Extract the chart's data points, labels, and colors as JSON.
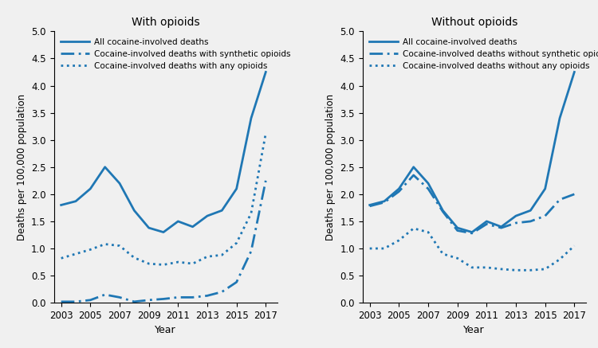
{
  "years": [
    2003,
    2004,
    2005,
    2006,
    2007,
    2008,
    2009,
    2010,
    2011,
    2012,
    2013,
    2014,
    2015,
    2016,
    2017
  ],
  "left_title": "With opioids",
  "left_line1_label": "All cocaine-involved deaths",
  "left_line2_label": "Cocaine-involved deaths with synthetic opioids",
  "left_line3_label": "Cocaine-involved deaths with any opioids",
  "left_line1": [
    1.8,
    1.87,
    2.1,
    2.5,
    2.2,
    1.7,
    1.38,
    1.3,
    1.5,
    1.4,
    1.6,
    1.7,
    2.1,
    3.4,
    4.25
  ],
  "left_line2": [
    0.02,
    0.02,
    0.05,
    0.15,
    0.1,
    0.02,
    0.05,
    0.07,
    0.1,
    0.1,
    0.13,
    0.2,
    0.38,
    0.95,
    2.25
  ],
  "left_line3": [
    0.82,
    0.9,
    0.98,
    1.08,
    1.05,
    0.83,
    0.72,
    0.7,
    0.75,
    0.72,
    0.85,
    0.88,
    1.1,
    1.65,
    3.12
  ],
  "right_title": "Without opioids",
  "right_line1_label": "All cocaine-involved deaths",
  "right_line2_label": "Cocaine-involved deaths without synthetic opioids",
  "right_line3_label": "Cocaine-involved deaths without any opioids",
  "right_line1": [
    1.8,
    1.87,
    2.1,
    2.5,
    2.2,
    1.7,
    1.38,
    1.3,
    1.5,
    1.4,
    1.6,
    1.7,
    2.1,
    3.4,
    4.25
  ],
  "right_line2": [
    1.78,
    1.85,
    2.05,
    2.35,
    2.1,
    1.68,
    1.33,
    1.28,
    1.45,
    1.38,
    1.47,
    1.5,
    1.6,
    1.9,
    2.0
  ],
  "right_line3": [
    1.0,
    1.0,
    1.15,
    1.37,
    1.3,
    0.9,
    0.82,
    0.65,
    0.65,
    0.62,
    0.6,
    0.6,
    0.62,
    0.8,
    1.05
  ],
  "line_color": "#1F77B4",
  "ylabel": "Deaths per 100,000 population",
  "xlabel": "Year",
  "ylim": [
    0,
    5.0
  ],
  "yticks": [
    0,
    0.5,
    1.0,
    1.5,
    2.0,
    2.5,
    3.0,
    3.5,
    4.0,
    4.5,
    5.0
  ],
  "xticks": [
    2003,
    2005,
    2007,
    2009,
    2011,
    2013,
    2015,
    2017
  ],
  "lw": 2.0,
  "bg_color": "#f0f0f0"
}
